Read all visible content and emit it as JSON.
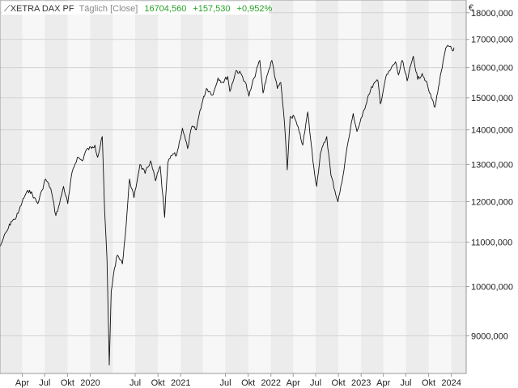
{
  "header": {
    "symbol": "XETRA DAX PF",
    "interval": "Täglich [Close]",
    "last": "16704,560",
    "change": "+157,530",
    "change_pct": "+0,952%",
    "change_color": "#27a127"
  },
  "currency": "€",
  "chart_data": {
    "type": "line",
    "title": "XETRA DAX PF",
    "ylabel": "€",
    "y_scale": "log",
    "ylim": [
      8300,
      18500
    ],
    "xlim": [
      "2019-01-01",
      "2024-03-01"
    ],
    "grid": true,
    "y_ticks": [
      {
        "value": 9000,
        "label": "9000,000"
      },
      {
        "value": 10000,
        "label": "10000,000"
      },
      {
        "value": 11000,
        "label": "11000,000"
      },
      {
        "value": 12000,
        "label": "12000,000"
      },
      {
        "value": 13000,
        "label": "13000,000"
      },
      {
        "value": 14000,
        "label": "14000,000"
      },
      {
        "value": 15000,
        "label": "15000,000"
      },
      {
        "value": 16000,
        "label": "16000,000"
      },
      {
        "value": 17000,
        "label": "17000,000"
      },
      {
        "value": 18000,
        "label": "18000,000"
      }
    ],
    "x_ticks": [
      {
        "date": "2019-04-01",
        "label": "Apr"
      },
      {
        "date": "2019-07-01",
        "label": "Jul"
      },
      {
        "date": "2019-10-01",
        "label": "Okt"
      },
      {
        "date": "2020-01-01",
        "label": "2020"
      },
      {
        "date": "2020-07-01",
        "label": "Jul"
      },
      {
        "date": "2020-10-01",
        "label": "Okt"
      },
      {
        "date": "2021-01-01",
        "label": "2021"
      },
      {
        "date": "2021-07-01",
        "label": "Jul"
      },
      {
        "date": "2021-10-01",
        "label": "Okt"
      },
      {
        "date": "2022-01-01",
        "label": "2022"
      },
      {
        "date": "2022-04-01",
        "label": "Apr"
      },
      {
        "date": "2022-07-01",
        "label": "Jul"
      },
      {
        "date": "2022-10-01",
        "label": "Okt"
      },
      {
        "date": "2023-01-01",
        "label": "2023"
      },
      {
        "date": "2023-04-01",
        "label": "Apr"
      },
      {
        "date": "2023-07-01",
        "label": "Jul"
      },
      {
        "date": "2023-10-01",
        "label": "Okt"
      },
      {
        "date": "2024-01-01",
        "label": "2024"
      }
    ],
    "series": [
      {
        "color": "#111111",
        "points": [
          [
            "2019-01-02",
            10900
          ],
          [
            "2019-01-15",
            11100
          ],
          [
            "2019-02-01",
            11300
          ],
          [
            "2019-02-15",
            11500
          ],
          [
            "2019-03-01",
            11550
          ],
          [
            "2019-03-15",
            11700
          ],
          [
            "2019-04-01",
            12000
          ],
          [
            "2019-04-15",
            12200
          ],
          [
            "2019-05-01",
            12300
          ],
          [
            "2019-05-20",
            12100
          ],
          [
            "2019-06-03",
            11950
          ],
          [
            "2019-06-20",
            12300
          ],
          [
            "2019-07-04",
            12600
          ],
          [
            "2019-07-25",
            12350
          ],
          [
            "2019-08-15",
            11650
          ],
          [
            "2019-08-30",
            11950
          ],
          [
            "2019-09-15",
            12400
          ],
          [
            "2019-10-02",
            11950
          ],
          [
            "2019-10-20",
            12800
          ],
          [
            "2019-11-10",
            13200
          ],
          [
            "2019-11-30",
            13100
          ],
          [
            "2019-12-15",
            13400
          ],
          [
            "2020-01-10",
            13500
          ],
          [
            "2020-01-20",
            13550
          ],
          [
            "2020-01-31",
            13200
          ],
          [
            "2020-02-19",
            13800
          ],
          [
            "2020-02-28",
            11800
          ],
          [
            "2020-03-09",
            10600
          ],
          [
            "2020-03-16",
            8900
          ],
          [
            "2020-03-18",
            8450
          ],
          [
            "2020-03-26",
            9900
          ],
          [
            "2020-04-08",
            10400
          ],
          [
            "2020-04-20",
            10700
          ],
          [
            "2020-05-10",
            10500
          ],
          [
            "2020-05-25",
            11400
          ],
          [
            "2020-06-08",
            12600
          ],
          [
            "2020-06-26",
            12100
          ],
          [
            "2020-07-20",
            13000
          ],
          [
            "2020-08-10",
            12750
          ],
          [
            "2020-09-01",
            13100
          ],
          [
            "2020-09-21",
            12550
          ],
          [
            "2020-10-10",
            12950
          ],
          [
            "2020-10-28",
            11600
          ],
          [
            "2020-11-10",
            13050
          ],
          [
            "2020-12-01",
            13300
          ],
          [
            "2020-12-15",
            13250
          ],
          [
            "2021-01-08",
            14050
          ],
          [
            "2021-01-29",
            13450
          ],
          [
            "2021-02-15",
            14100
          ],
          [
            "2021-03-05",
            14000
          ],
          [
            "2021-03-20",
            14600
          ],
          [
            "2021-04-15",
            15300
          ],
          [
            "2021-05-12",
            15100
          ],
          [
            "2021-06-01",
            15650
          ],
          [
            "2021-06-20",
            15500
          ],
          [
            "2021-07-10",
            15700
          ],
          [
            "2021-07-19",
            15200
          ],
          [
            "2021-08-13",
            15900
          ],
          [
            "2021-09-01",
            15800
          ],
          [
            "2021-09-20",
            15500
          ],
          [
            "2021-10-04",
            15050
          ],
          [
            "2021-10-25",
            15650
          ],
          [
            "2021-11-17",
            16250
          ],
          [
            "2021-11-30",
            15150
          ],
          [
            "2021-12-15",
            15700
          ],
          [
            "2022-01-05",
            16250
          ],
          [
            "2022-01-27",
            15300
          ],
          [
            "2022-02-10",
            15500
          ],
          [
            "2022-02-25",
            14200
          ],
          [
            "2022-03-08",
            12850
          ],
          [
            "2022-03-20",
            14400
          ],
          [
            "2022-04-05",
            14400
          ],
          [
            "2022-04-25",
            13950
          ],
          [
            "2022-05-10",
            13550
          ],
          [
            "2022-05-30",
            14550
          ],
          [
            "2022-06-20",
            13100
          ],
          [
            "2022-07-05",
            12400
          ],
          [
            "2022-07-20",
            13300
          ],
          [
            "2022-08-15",
            13800
          ],
          [
            "2022-09-01",
            12700
          ],
          [
            "2022-09-29",
            12000
          ],
          [
            "2022-10-15",
            12500
          ],
          [
            "2022-11-01",
            13300
          ],
          [
            "2022-11-30",
            14500
          ],
          [
            "2022-12-15",
            13950
          ],
          [
            "2023-01-05",
            14400
          ],
          [
            "2023-01-31",
            15100
          ],
          [
            "2023-02-20",
            15450
          ],
          [
            "2023-03-10",
            15550
          ],
          [
            "2023-03-20",
            14800
          ],
          [
            "2023-04-10",
            15650
          ],
          [
            "2023-05-01",
            15950
          ],
          [
            "2023-05-20",
            16200
          ],
          [
            "2023-06-01",
            15750
          ],
          [
            "2023-06-16",
            16250
          ],
          [
            "2023-07-06",
            15550
          ],
          [
            "2023-07-31",
            16400
          ],
          [
            "2023-08-18",
            15600
          ],
          [
            "2023-09-05",
            15800
          ],
          [
            "2023-09-20",
            15550
          ],
          [
            "2023-10-05",
            15150
          ],
          [
            "2023-10-27",
            14700
          ],
          [
            "2023-11-10",
            15350
          ],
          [
            "2023-11-25",
            16000
          ],
          [
            "2023-12-05",
            16500
          ],
          [
            "2023-12-14",
            16750
          ],
          [
            "2023-12-29",
            16750
          ],
          [
            "2024-01-05",
            16600
          ],
          [
            "2024-01-12",
            16704.56
          ]
        ]
      }
    ]
  }
}
